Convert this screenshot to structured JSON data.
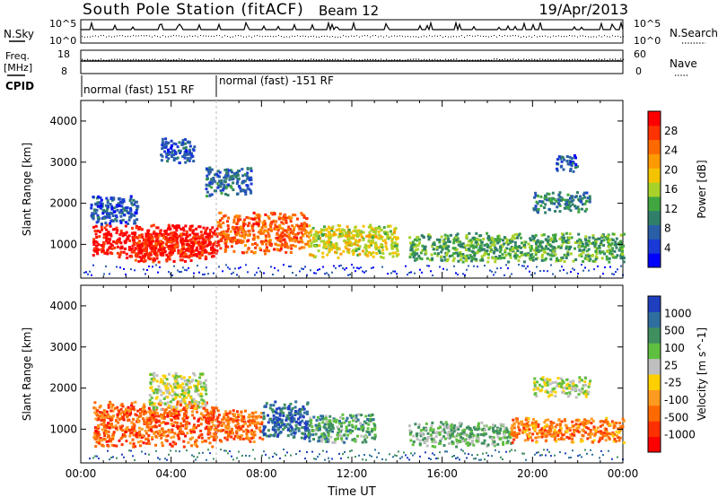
{
  "header": {
    "station_title": "South Pole Station (fitACF)",
    "beam_label": "Beam 12",
    "date_label": "19/Apr/2013"
  },
  "top_panels": {
    "nsky_label": "N.Sky",
    "nsearch_label": "N.Search",
    "nsearch_style": "dotted",
    "noise_axis_ticks": [
      "10^5",
      "10^0"
    ],
    "freq_label_line1": "Freq.",
    "freq_label_line2": "[MHz]",
    "freq_ticks_left": [
      "18",
      "8"
    ],
    "nave_label": "Nave",
    "nave_style": "dotted",
    "nave_ticks_right": [
      "60",
      "0"
    ],
    "cpid_label": "CPID",
    "cpid_segments": [
      {
        "label": "normal (fast) 151 RF",
        "start_hour": 0,
        "end_hour": 6.0
      },
      {
        "label": "normal (fast) -151 RF",
        "start_hour": 6.0,
        "end_hour": 24
      }
    ]
  },
  "chart_data": [
    {
      "type": "heatmap",
      "name": "power",
      "title": "",
      "xlabel": "",
      "ylabel": "Slant Range [km]",
      "xlim_hours": [
        0,
        24
      ],
      "ylim_km": [
        180,
        4500
      ],
      "y_ticks": [
        1000,
        2000,
        3000,
        4000
      ],
      "colorbar": {
        "label": "Power [dB]",
        "ticks": [
          "4",
          "8",
          "12",
          "16",
          "20",
          "24",
          "28"
        ],
        "colors": [
          "#0000ff",
          "#1a3ad8",
          "#2a5fa8",
          "#2f7f6a",
          "#41a640",
          "#a8d22a",
          "#f5c400",
          "#ff9900",
          "#ff6a00",
          "#ff3300",
          "#ff0000"
        ]
      },
      "regions": [
        {
          "t0": 0.5,
          "t1": 6.0,
          "r0": 700,
          "r1": 1500,
          "level": 0.95
        },
        {
          "t0": 2.2,
          "t1": 5.5,
          "r0": 600,
          "r1": 1300,
          "level": 0.9
        },
        {
          "t0": 6.0,
          "t1": 10.0,
          "r0": 800,
          "r1": 1800,
          "level": 0.8
        },
        {
          "t0": 10.0,
          "t1": 14.0,
          "r0": 700,
          "r1": 1500,
          "level": 0.55
        },
        {
          "t0": 14.5,
          "t1": 24.0,
          "r0": 600,
          "r1": 1300,
          "level": 0.4
        },
        {
          "t0": 0.4,
          "t1": 2.5,
          "r0": 1500,
          "r1": 2200,
          "level": 0.2
        },
        {
          "t0": 3.5,
          "t1": 5.0,
          "r0": 3000,
          "r1": 3600,
          "level": 0.2
        },
        {
          "t0": 5.5,
          "t1": 7.5,
          "r0": 2200,
          "r1": 2900,
          "level": 0.25
        },
        {
          "t0": 20.0,
          "t1": 22.5,
          "r0": 1800,
          "r1": 2300,
          "level": 0.3
        },
        {
          "t0": 21.0,
          "t1": 22.0,
          "r0": 2800,
          "r1": 3200,
          "level": 0.2
        }
      ]
    },
    {
      "type": "heatmap",
      "name": "velocity",
      "title": "",
      "xlabel": "Time UT",
      "ylabel": "Slant Range [km]",
      "xlim_hours": [
        0,
        24
      ],
      "ylim_km": [
        180,
        4500
      ],
      "y_ticks": [
        1000,
        2000,
        3000,
        4000
      ],
      "x_ticks": [
        "00:00",
        "04:00",
        "08:00",
        "12:00",
        "16:00",
        "20:00",
        "00:00"
      ],
      "colorbar": {
        "label": "Velocity [m s^-1]",
        "ticks": [
          "1000",
          "500",
          "100",
          "25",
          "-25",
          "-100",
          "-500",
          "-1000"
        ],
        "colors": [
          "#1f3fbf",
          "#2f6f9f",
          "#3f8f5f",
          "#5fbf3f",
          "#bfbfbf",
          "#ffd000",
          "#ff9a20",
          "#ff6a00",
          "#ff3000",
          "#ff0000"
        ]
      },
      "regions": [
        {
          "t0": 0.5,
          "t1": 6.0,
          "r0": 600,
          "r1": 1700,
          "level": 0.78
        },
        {
          "t0": 6.0,
          "t1": 8.0,
          "r0": 700,
          "r1": 1500,
          "level": 0.75
        },
        {
          "t0": 8.0,
          "t1": 10.0,
          "r0": 800,
          "r1": 1700,
          "level": 0.12
        },
        {
          "t0": 10.0,
          "t1": 13.0,
          "r0": 700,
          "r1": 1400,
          "level": 0.3
        },
        {
          "t0": 14.5,
          "t1": 19.0,
          "r0": 600,
          "r1": 1200,
          "level": 0.35
        },
        {
          "t0": 19.0,
          "t1": 24.0,
          "r0": 700,
          "r1": 1300,
          "level": 0.72
        },
        {
          "t0": 3.0,
          "t1": 5.5,
          "r0": 1500,
          "r1": 2400,
          "level": 0.45
        },
        {
          "t0": 20.0,
          "t1": 22.5,
          "r0": 1800,
          "r1": 2300,
          "level": 0.45
        }
      ]
    }
  ]
}
